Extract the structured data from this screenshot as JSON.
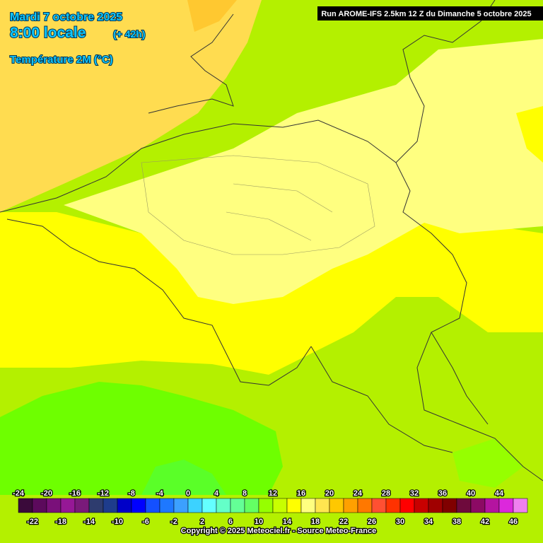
{
  "header": {
    "date": "Mardi 7 octobre 2025",
    "time": "8:00 locale",
    "lead": "(+ 42h)",
    "parameter": "Température 2M (°C)",
    "run": "Run AROME-IFS 2.5km 12 Z du Dimanche 5 octobre 2025"
  },
  "legend": {
    "values": [
      -24,
      -22,
      -20,
      -18,
      -16,
      -14,
      -12,
      -10,
      -8,
      -6,
      -4,
      -2,
      0,
      2,
      4,
      6,
      8,
      10,
      12,
      14,
      16,
      18,
      20,
      22,
      24,
      26,
      28,
      30,
      32,
      34,
      36,
      38,
      40,
      42,
      44,
      46
    ],
    "colors": [
      "#3a0a3a",
      "#5c0a5c",
      "#7a107a",
      "#961896",
      "#7a1a7a",
      "#2e3c6e",
      "#1e3c8c",
      "#0000c8",
      "#0000ff",
      "#1450ff",
      "#1e78ff",
      "#3ca0ff",
      "#3cd2ff",
      "#64ffff",
      "#64ffc8",
      "#64ff96",
      "#64ff64",
      "#96ff00",
      "#c8ff00",
      "#ffff00",
      "#ffff80",
      "#ffe650",
      "#ffc800",
      "#ffa000",
      "#ff7800",
      "#ff5032",
      "#ff3200",
      "#ff0000",
      "#c80000",
      "#a00000",
      "#800000",
      "#6e0a3c",
      "#8c0a64",
      "#b414a0",
      "#dc28dc",
      "#f080f0"
    ]
  },
  "footer": {
    "copyright": "Copyright © 2025 Meteociel.fr - Source Meteo-France"
  }
}
